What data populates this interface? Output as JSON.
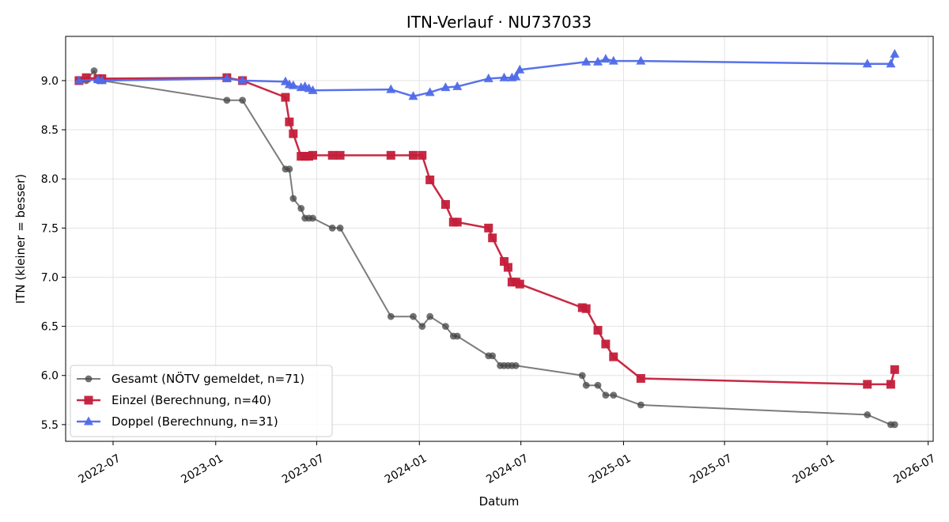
{
  "chart_data": {
    "type": "line",
    "title": "ITN-Verlauf · NU737033",
    "xlabel": "Datum",
    "ylabel": "ITN  (kleiner = besser)",
    "ylim": [
      5.33,
      9.45
    ],
    "xlim": [
      "2022-04-07",
      "2026-07-10"
    ],
    "grid": true,
    "legend_position": "lower-left",
    "x_ticks": [
      "2022-07",
      "2023-01",
      "2023-07",
      "2024-01",
      "2024-07",
      "2025-01",
      "2025-07",
      "2026-01",
      "2026-07"
    ],
    "y_ticks": [
      5.5,
      6.0,
      6.5,
      7.0,
      7.5,
      8.0,
      8.5,
      9.0
    ],
    "series": [
      {
        "name": "Gesamt (NÖTV gemeldet, n=71)",
        "color": "#444444",
        "marker": "circle",
        "points": [
          [
            "2022-05-01",
            9.0
          ],
          [
            "2022-05-14",
            9.0
          ],
          [
            "2022-05-28",
            9.1
          ],
          [
            "2022-06-04",
            9.0
          ],
          [
            "2022-06-11",
            9.0
          ],
          [
            "2023-01-21",
            8.8
          ],
          [
            "2023-02-18",
            8.8
          ],
          [
            "2023-05-06",
            8.1
          ],
          [
            "2023-05-13",
            8.1
          ],
          [
            "2023-05-20",
            7.8
          ],
          [
            "2023-06-03",
            7.7
          ],
          [
            "2023-06-10",
            7.6
          ],
          [
            "2023-06-17",
            7.6
          ],
          [
            "2023-06-24",
            7.6
          ],
          [
            "2023-07-29",
            7.5
          ],
          [
            "2023-08-12",
            7.5
          ],
          [
            "2023-11-11",
            6.6
          ],
          [
            "2023-12-21",
            6.6
          ],
          [
            "2024-01-06",
            6.5
          ],
          [
            "2024-01-20",
            6.6
          ],
          [
            "2024-02-17",
            6.5
          ],
          [
            "2024-03-02",
            6.4
          ],
          [
            "2024-03-09",
            6.4
          ],
          [
            "2024-05-04",
            6.2
          ],
          [
            "2024-05-11",
            6.2
          ],
          [
            "2024-05-25",
            6.1
          ],
          [
            "2024-06-01",
            6.1
          ],
          [
            "2024-06-08",
            6.1
          ],
          [
            "2024-06-15",
            6.1
          ],
          [
            "2024-06-22",
            6.1
          ],
          [
            "2024-10-19",
            6.0
          ],
          [
            "2024-10-26",
            5.9
          ],
          [
            "2024-11-16",
            5.9
          ],
          [
            "2024-11-30",
            5.8
          ],
          [
            "2024-12-14",
            5.8
          ],
          [
            "2025-02-01",
            5.7
          ],
          [
            "2026-03-14",
            5.6
          ],
          [
            "2026-04-25",
            5.5
          ],
          [
            "2026-05-02",
            5.5
          ]
        ]
      },
      {
        "name": "Einzel (Berechnung, n=40)",
        "color": "#c41e3a",
        "marker": "square",
        "points": [
          [
            "2022-05-01",
            9.0
          ],
          [
            "2022-05-14",
            9.03
          ],
          [
            "2022-06-04",
            9.02
          ],
          [
            "2022-06-11",
            9.02
          ],
          [
            "2023-01-21",
            9.03
          ],
          [
            "2023-02-18",
            9.0
          ],
          [
            "2023-05-06",
            8.83
          ],
          [
            "2023-05-13",
            8.58
          ],
          [
            "2023-05-20",
            8.46
          ],
          [
            "2023-06-03",
            8.23
          ],
          [
            "2023-06-10",
            8.23
          ],
          [
            "2023-06-17",
            8.23
          ],
          [
            "2023-06-24",
            8.24
          ],
          [
            "2023-07-29",
            8.24
          ],
          [
            "2023-08-12",
            8.24
          ],
          [
            "2023-11-11",
            8.24
          ],
          [
            "2023-12-21",
            8.24
          ],
          [
            "2024-01-06",
            8.24
          ],
          [
            "2024-01-20",
            7.99
          ],
          [
            "2024-02-17",
            7.74
          ],
          [
            "2024-03-02",
            7.56
          ],
          [
            "2024-03-09",
            7.56
          ],
          [
            "2024-05-04",
            7.5
          ],
          [
            "2024-05-11",
            7.4
          ],
          [
            "2024-06-01",
            7.16
          ],
          [
            "2024-06-08",
            7.1
          ],
          [
            "2024-06-15",
            6.95
          ],
          [
            "2024-06-22",
            6.95
          ],
          [
            "2024-06-29",
            6.93
          ],
          [
            "2024-10-19",
            6.69
          ],
          [
            "2024-10-26",
            6.68
          ],
          [
            "2024-11-16",
            6.46
          ],
          [
            "2024-11-30",
            6.32
          ],
          [
            "2024-12-14",
            6.19
          ],
          [
            "2025-02-01",
            5.97
          ],
          [
            "2026-03-14",
            5.91
          ],
          [
            "2026-04-25",
            5.91
          ],
          [
            "2026-05-02",
            6.06
          ]
        ]
      },
      {
        "name": "Doppel (Berechnung, n=31)",
        "color": "#4f6ae8",
        "marker": "triangle",
        "points": [
          [
            "2022-05-01",
            9.0
          ],
          [
            "2022-06-04",
            9.01
          ],
          [
            "2022-06-11",
            9.0
          ],
          [
            "2023-01-21",
            9.02
          ],
          [
            "2023-02-18",
            9.0
          ],
          [
            "2023-05-06",
            8.99
          ],
          [
            "2023-05-13",
            8.96
          ],
          [
            "2023-05-20",
            8.95
          ],
          [
            "2023-06-03",
            8.93
          ],
          [
            "2023-06-10",
            8.94
          ],
          [
            "2023-06-17",
            8.92
          ],
          [
            "2023-06-24",
            8.9
          ],
          [
            "2023-11-11",
            8.91
          ],
          [
            "2023-12-21",
            8.84
          ],
          [
            "2024-01-20",
            8.88
          ],
          [
            "2024-02-17",
            8.93
          ],
          [
            "2024-03-09",
            8.94
          ],
          [
            "2024-05-04",
            9.02
          ],
          [
            "2024-06-01",
            9.03
          ],
          [
            "2024-06-15",
            9.03
          ],
          [
            "2024-06-22",
            9.04
          ],
          [
            "2024-06-29",
            9.11
          ],
          [
            "2024-10-26",
            9.19
          ],
          [
            "2024-11-16",
            9.19
          ],
          [
            "2024-11-30",
            9.22
          ],
          [
            "2024-12-14",
            9.2
          ],
          [
            "2025-02-01",
            9.2
          ],
          [
            "2026-03-14",
            9.17
          ],
          [
            "2026-04-25",
            9.17
          ],
          [
            "2026-05-02",
            9.27
          ]
        ]
      }
    ]
  }
}
